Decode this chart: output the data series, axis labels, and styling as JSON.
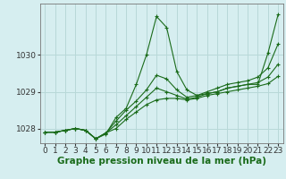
{
  "background_color": "#d6eef0",
  "grid_color": "#b8d8d8",
  "line_color": "#1a6b1a",
  "marker_color": "#1a6b1a",
  "xlabel": "Graphe pression niveau de la mer (hPa)",
  "xlabel_fontsize": 7.5,
  "ylim": [
    1027.6,
    1031.4
  ],
  "xlim": [
    -0.5,
    23.5
  ],
  "yticks": [
    1028,
    1029,
    1030
  ],
  "xticks": [
    0,
    1,
    2,
    3,
    4,
    5,
    6,
    7,
    8,
    9,
    10,
    11,
    12,
    13,
    14,
    15,
    16,
    17,
    18,
    19,
    20,
    21,
    22,
    23
  ],
  "tick_fontsize": 6.5,
  "figsize": [
    3.2,
    2.0
  ],
  "dpi": 100,
  "lines": [
    {
      "x": [
        0,
        1,
        2,
        3,
        4,
        5,
        6,
        7,
        8,
        9,
        10,
        11,
        12,
        13,
        14,
        15,
        16,
        17,
        18,
        19,
        20,
        21,
        22,
        23
      ],
      "y": [
        1027.9,
        1027.9,
        1027.95,
        1028.0,
        1027.95,
        1027.72,
        1027.85,
        1028.3,
        1028.55,
        1029.2,
        1030.0,
        1031.05,
        1030.75,
        1029.55,
        1029.05,
        1028.9,
        1028.95,
        1029.0,
        1029.1,
        1029.15,
        1029.2,
        1029.2,
        1030.05,
        1031.1
      ]
    },
    {
      "x": [
        0,
        1,
        2,
        3,
        4,
        5,
        6,
        7,
        8,
        9,
        10,
        11,
        12,
        13,
        14,
        15,
        16,
        17,
        18,
        19,
        20,
        21,
        22,
        23
      ],
      "y": [
        1027.9,
        1027.9,
        1027.95,
        1028.0,
        1027.95,
        1027.72,
        1027.88,
        1028.2,
        1028.5,
        1028.75,
        1029.05,
        1029.45,
        1029.35,
        1029.05,
        1028.85,
        1028.9,
        1029.0,
        1029.1,
        1029.2,
        1029.25,
        1029.3,
        1029.4,
        1029.65,
        1030.3
      ]
    },
    {
      "x": [
        0,
        1,
        2,
        3,
        4,
        5,
        6,
        7,
        8,
        9,
        10,
        11,
        12,
        13,
        14,
        15,
        16,
        17,
        18,
        19,
        20,
        21,
        22,
        23
      ],
      "y": [
        1027.9,
        1027.9,
        1027.95,
        1028.0,
        1027.95,
        1027.72,
        1027.88,
        1028.1,
        1028.35,
        1028.6,
        1028.85,
        1029.1,
        1029.0,
        1028.9,
        1028.8,
        1028.85,
        1028.95,
        1029.0,
        1029.1,
        1029.15,
        1029.2,
        1029.25,
        1029.4,
        1029.75
      ]
    },
    {
      "x": [
        0,
        1,
        2,
        3,
        4,
        5,
        6,
        7,
        8,
        9,
        10,
        11,
        12,
        13,
        14,
        15,
        16,
        17,
        18,
        19,
        20,
        21,
        22,
        23
      ],
      "y": [
        1027.9,
        1027.9,
        1027.95,
        1028.0,
        1027.95,
        1027.72,
        1027.88,
        1028.0,
        1028.25,
        1028.45,
        1028.65,
        1028.78,
        1028.82,
        1028.82,
        1028.78,
        1028.82,
        1028.9,
        1028.95,
        1029.0,
        1029.05,
        1029.1,
        1029.15,
        1029.22,
        1029.42
      ]
    }
  ]
}
